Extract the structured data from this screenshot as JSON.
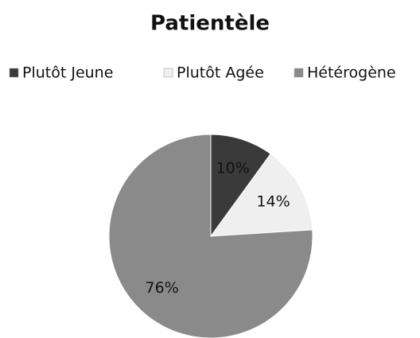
{
  "chart_data": {
    "type": "pie",
    "title": "Patientèle",
    "categories": [
      "Plutôt Jeune",
      "Plutôt Agée",
      "Hétérogène"
    ],
    "values": [
      10,
      14,
      76
    ],
    "value_labels": [
      "10%",
      "14%",
      "76%"
    ],
    "colors": [
      "#3a3a3a",
      "#efefef",
      "#8a8a8a"
    ]
  }
}
